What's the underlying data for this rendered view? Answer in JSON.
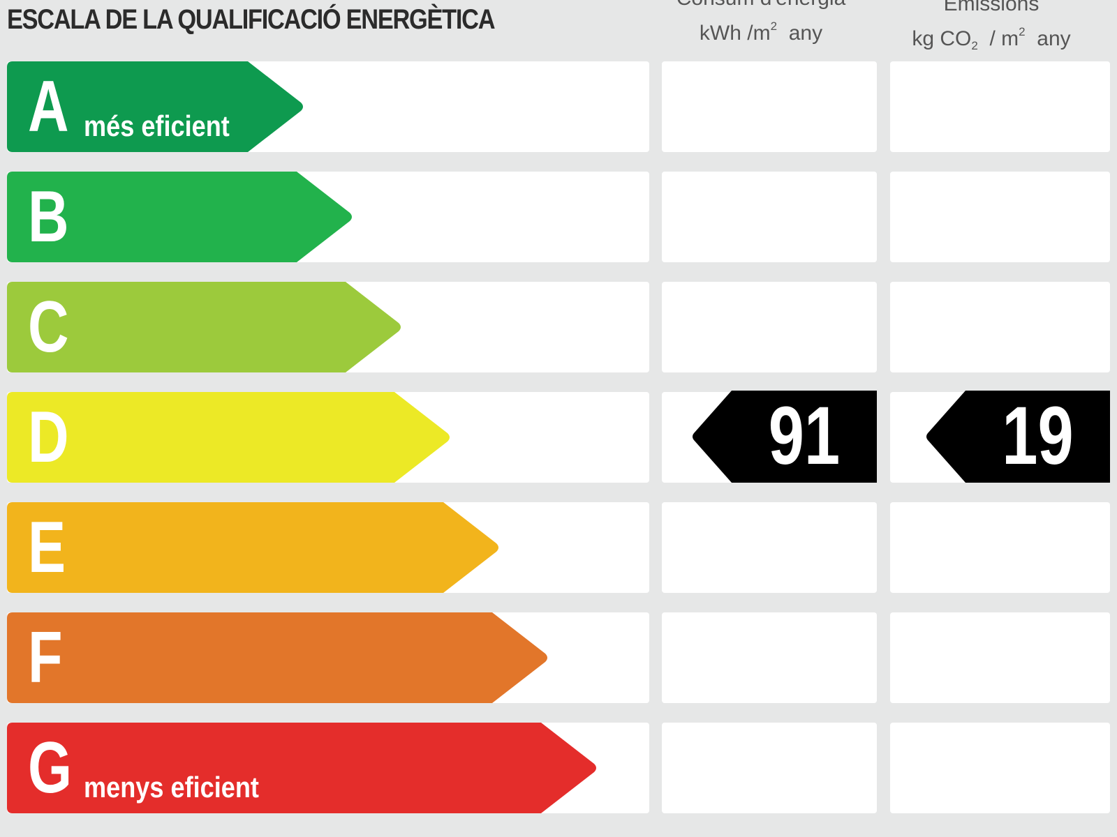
{
  "title": "ESCALA DE LA QUALIFICACIÓ ENERGÈTICA",
  "columns": {
    "consumption": {
      "line1": "Consum d'energia",
      "unit_main": "kWh /m",
      "unit_sup": "2",
      "unit_tail": "any"
    },
    "emissions": {
      "line1": "Emissions",
      "unit_main": "kg CO",
      "unit_sub": "2",
      "unit_mid": "/ m",
      "unit_sup": "2",
      "unit_tail": "any"
    }
  },
  "bands": [
    {
      "letter": "A",
      "label": "més eficient",
      "color": "#0e9a4f"
    },
    {
      "letter": "B",
      "label": "",
      "color": "#22b24c"
    },
    {
      "letter": "C",
      "label": "",
      "color": "#9cca3c"
    },
    {
      "letter": "D",
      "label": "",
      "color": "#ece926"
    },
    {
      "letter": "E",
      "label": "",
      "color": "#f2b41c"
    },
    {
      "letter": "F",
      "label": "",
      "color": "#e2762a"
    },
    {
      "letter": "G",
      "label": "menys eficient",
      "color": "#e42d2b"
    }
  ],
  "rating": {
    "band": "D",
    "consumption_value": "91",
    "emissions_value": "19"
  }
}
